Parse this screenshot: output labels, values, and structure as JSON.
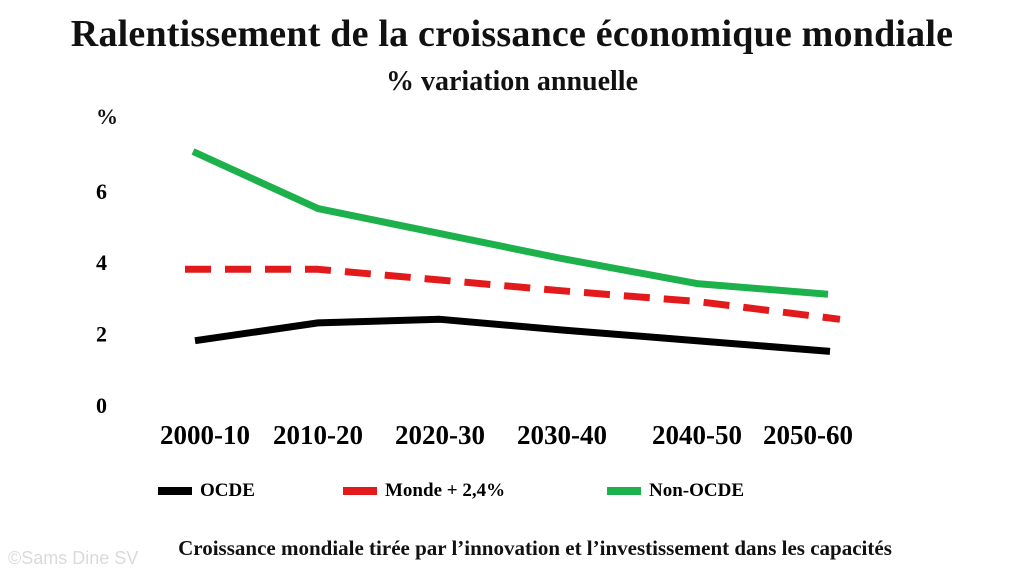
{
  "chart_data": {
    "type": "line",
    "title": "Ralentissement de la croissance économique mondiale",
    "subtitle": "% variation annuelle",
    "ylabel": "%",
    "categories": [
      "2000-10",
      "2010-20",
      "2020-30",
      "2030-40",
      "2040-50",
      "2050-60"
    ],
    "yticks": [
      "0",
      "2",
      "4",
      "6"
    ],
    "ylim": [
      0,
      8
    ],
    "grid": false,
    "legend_position": "bottom",
    "series": [
      {
        "name": "OCDE",
        "color": "#000000",
        "style": "solid",
        "values": [
          1.8,
          2.3,
          2.4,
          2.1,
          1.8,
          1.5
        ]
      },
      {
        "name": "Monde + 2,4%",
        "color": "#e31a1c",
        "style": "dashed",
        "values": [
          3.8,
          3.8,
          3.5,
          3.2,
          2.9,
          2.4
        ]
      },
      {
        "name": "Non-OCDE",
        "color": "#1db14b",
        "style": "solid",
        "values": [
          7.1,
          5.5,
          4.8,
          4.1,
          3.4,
          3.1
        ]
      }
    ]
  },
  "caption": "Croissance mondiale tirée par l’innovation et l’investissement dans les capacités",
  "watermark": "©Sams Dine SV"
}
